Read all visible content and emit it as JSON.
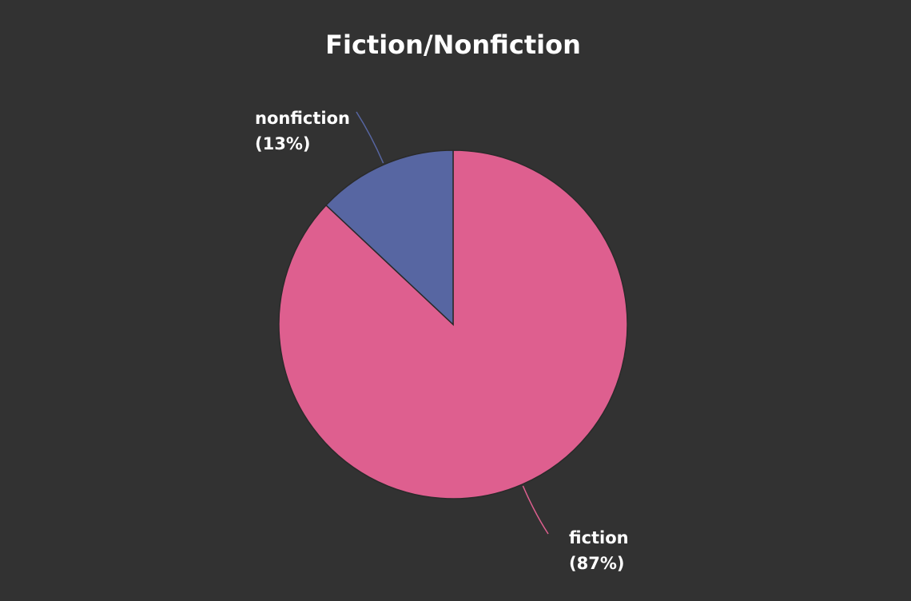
{
  "chart_data": {
    "type": "pie",
    "title": "Fiction/Nonfiction",
    "slices": [
      {
        "label": "fiction",
        "value": 87,
        "pct_text": "(87%)",
        "color": "#de5f8f"
      },
      {
        "label": "nonfiction",
        "value": 13,
        "pct_text": "(13%)",
        "color": "#5766a2"
      }
    ],
    "background_color": "#323232",
    "text_color": "#ffffff",
    "legend": "none"
  }
}
